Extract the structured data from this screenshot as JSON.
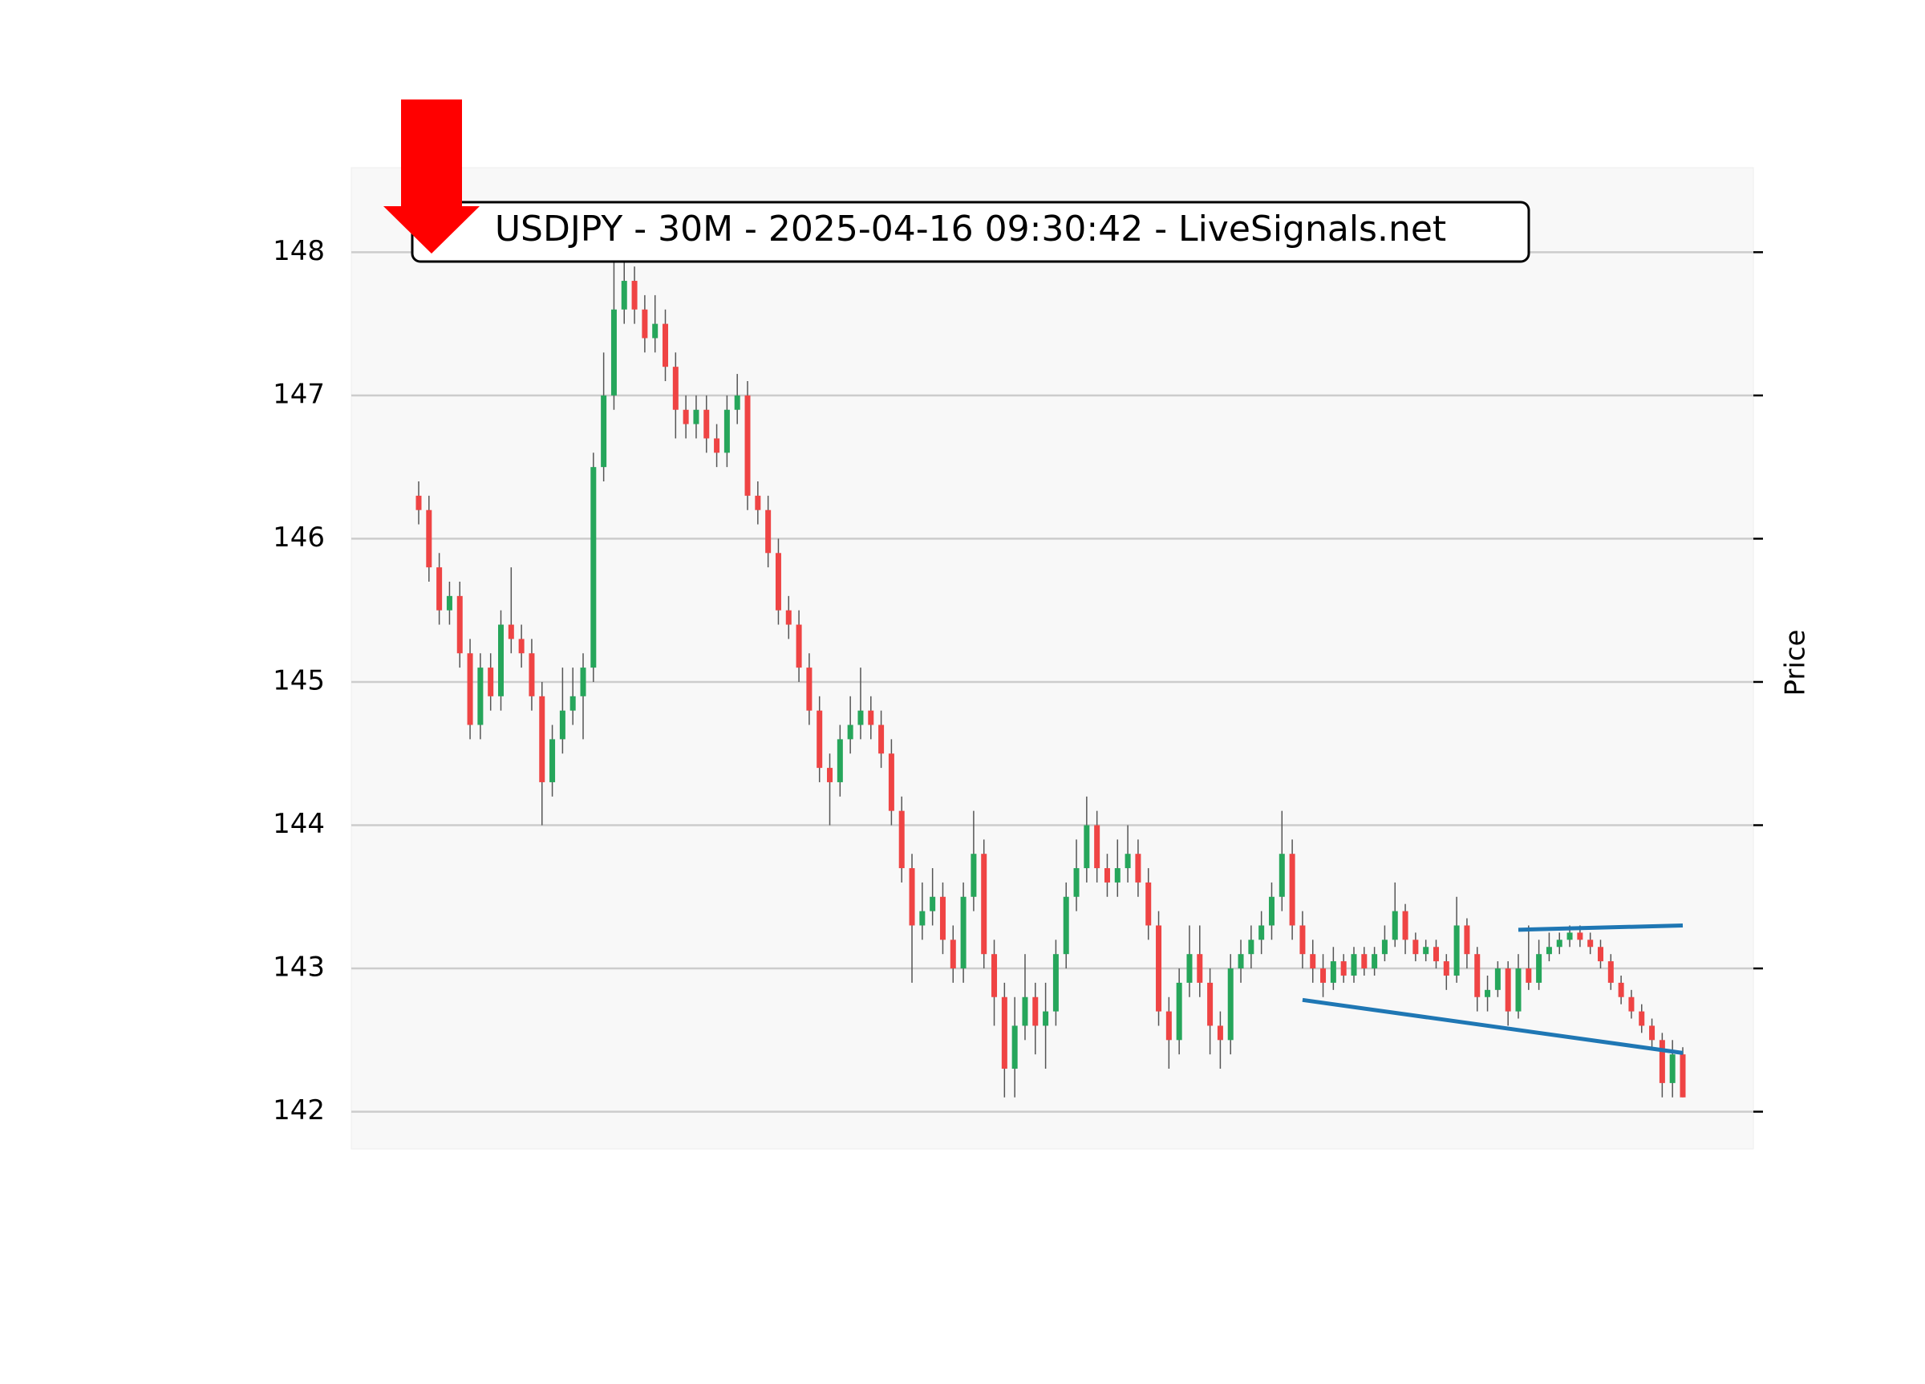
{
  "chart_data": {
    "type": "candlestick",
    "title": "USDJPY - 30M - 2025-04-16 09:30:42 - LiveSignals.net",
    "y_label": "Price",
    "ylim": [
      141.74,
      148.59
    ],
    "yticks": [
      142,
      143,
      144,
      145,
      146,
      147,
      148
    ],
    "grid": true,
    "up_color": "#26a65b",
    "down_color": "#ef4444",
    "open": [
      146.3,
      146.2,
      145.8,
      145.5,
      145.6,
      145.2,
      144.7,
      145.1,
      144.9,
      145.4,
      145.3,
      145.2,
      144.9,
      144.3,
      144.6,
      144.8,
      144.9,
      145.1,
      146.5,
      147.0,
      147.6,
      147.8,
      147.6,
      147.4,
      147.5,
      147.2,
      146.9,
      146.8,
      146.9,
      146.7,
      146.6,
      146.9,
      147.0,
      146.3,
      146.2,
      145.9,
      145.5,
      145.4,
      145.1,
      144.8,
      144.4,
      144.3,
      144.6,
      144.7,
      144.8,
      144.7,
      144.5,
      144.1,
      143.7,
      143.3,
      143.4,
      143.5,
      143.2,
      143.0,
      143.5,
      143.8,
      143.1,
      142.8,
      142.3,
      142.6,
      142.8,
      142.6,
      142.7,
      143.1,
      143.5,
      143.7,
      144.0,
      143.7,
      143.6,
      143.7,
      143.8,
      143.6,
      143.3,
      142.7,
      142.5,
      142.9,
      143.1,
      142.9,
      142.6,
      142.5,
      143.0,
      143.1,
      143.2,
      143.3,
      143.5,
      143.8,
      143.3,
      143.1,
      143.0,
      142.9,
      143.05,
      142.95,
      143.1,
      143.0,
      143.1,
      143.2,
      143.4,
      143.2,
      143.1,
      143.15,
      143.05,
      142.95,
      143.3,
      143.1,
      142.8,
      142.85,
      143.0,
      142.7,
      143.0,
      142.9,
      143.1,
      143.15,
      143.2,
      143.25,
      143.2,
      143.15,
      143.05,
      142.9,
      142.8,
      142.7,
      142.6,
      142.5,
      142.2,
      142.4
    ],
    "high": [
      146.4,
      146.3,
      145.9,
      145.7,
      145.7,
      145.3,
      145.2,
      145.2,
      145.5,
      145.8,
      145.4,
      145.3,
      145.0,
      144.7,
      145.1,
      145.1,
      145.2,
      146.6,
      147.3,
      148.0,
      148.0,
      147.9,
      147.7,
      147.7,
      147.6,
      147.3,
      147.0,
      147.0,
      147.0,
      146.8,
      147.0,
      147.15,
      147.1,
      146.4,
      146.3,
      146.0,
      145.6,
      145.5,
      145.2,
      144.9,
      144.5,
      144.7,
      144.9,
      145.1,
      144.9,
      144.8,
      144.6,
      144.2,
      143.8,
      143.6,
      143.7,
      143.6,
      143.3,
      143.6,
      144.1,
      143.9,
      143.2,
      142.9,
      142.8,
      143.1,
      142.9,
      142.9,
      143.2,
      143.6,
      143.9,
      144.2,
      144.1,
      143.8,
      143.9,
      144.0,
      143.9,
      143.7,
      143.4,
      142.8,
      143.0,
      143.3,
      143.3,
      143.0,
      142.7,
      143.1,
      143.2,
      143.3,
      143.4,
      143.6,
      144.1,
      143.9,
      143.4,
      143.2,
      143.1,
      143.15,
      143.1,
      143.15,
      143.15,
      143.15,
      143.3,
      143.6,
      143.45,
      143.25,
      143.2,
      143.2,
      143.1,
      143.5,
      143.35,
      143.15,
      142.95,
      143.05,
      143.05,
      143.1,
      143.3,
      143.2,
      143.25,
      143.25,
      143.3,
      143.3,
      143.25,
      143.2,
      143.1,
      142.95,
      142.85,
      142.75,
      142.65,
      142.55,
      142.5,
      142.45
    ],
    "low": [
      146.1,
      145.7,
      145.4,
      145.4,
      145.1,
      144.6,
      144.6,
      144.8,
      144.8,
      145.2,
      145.1,
      144.8,
      144.0,
      144.2,
      144.5,
      144.7,
      144.6,
      145.0,
      146.4,
      146.9,
      147.5,
      147.5,
      147.3,
      147.3,
      147.1,
      146.7,
      146.7,
      146.7,
      146.6,
      146.5,
      146.5,
      146.8,
      146.2,
      146.1,
      145.8,
      145.4,
      145.3,
      145.0,
      144.7,
      144.3,
      144.0,
      144.2,
      144.5,
      144.6,
      144.6,
      144.4,
      144.0,
      143.6,
      142.9,
      143.2,
      143.3,
      143.1,
      142.9,
      142.9,
      143.4,
      143.0,
      142.6,
      142.1,
      142.1,
      142.5,
      142.4,
      142.3,
      142.6,
      143.0,
      143.4,
      143.6,
      143.6,
      143.5,
      143.5,
      143.6,
      143.5,
      143.2,
      142.6,
      142.3,
      142.4,
      142.8,
      142.8,
      142.4,
      142.3,
      142.4,
      142.9,
      143.0,
      143.1,
      143.2,
      143.4,
      143.2,
      143.0,
      142.9,
      142.8,
      142.85,
      142.9,
      142.9,
      142.95,
      142.95,
      143.05,
      143.15,
      143.1,
      143.05,
      143.05,
      143.0,
      142.85,
      142.9,
      143.0,
      142.7,
      142.7,
      142.8,
      142.6,
      142.65,
      142.85,
      142.85,
      143.05,
      143.1,
      143.15,
      143.15,
      143.1,
      143.0,
      142.85,
      142.75,
      142.65,
      142.55,
      142.45,
      142.1,
      142.1,
      142.1
    ],
    "close": [
      146.2,
      145.8,
      145.5,
      145.6,
      145.2,
      144.7,
      145.1,
      144.9,
      145.4,
      145.3,
      145.2,
      144.9,
      144.3,
      144.6,
      144.8,
      144.9,
      145.1,
      146.5,
      147.0,
      147.6,
      147.8,
      147.6,
      147.4,
      147.5,
      147.2,
      146.9,
      146.8,
      146.9,
      146.7,
      146.6,
      146.9,
      147.0,
      146.3,
      146.2,
      145.9,
      145.5,
      145.4,
      145.1,
      144.8,
      144.4,
      144.3,
      144.6,
      144.7,
      144.8,
      144.7,
      144.5,
      144.1,
      143.7,
      143.3,
      143.4,
      143.5,
      143.2,
      143.0,
      143.5,
      143.8,
      143.1,
      142.8,
      142.3,
      142.6,
      142.8,
      142.6,
      142.7,
      143.1,
      143.5,
      143.7,
      144.0,
      143.7,
      143.6,
      143.7,
      143.8,
      143.6,
      143.3,
      142.7,
      142.5,
      142.9,
      143.1,
      142.9,
      142.6,
      142.5,
      143.0,
      143.1,
      143.2,
      143.3,
      143.5,
      143.8,
      143.3,
      143.1,
      143.0,
      142.9,
      143.05,
      142.95,
      143.1,
      143.0,
      143.1,
      143.2,
      143.4,
      143.2,
      143.1,
      143.15,
      143.05,
      142.95,
      143.3,
      143.1,
      142.8,
      142.85,
      143.0,
      142.7,
      143.0,
      142.9,
      143.1,
      143.15,
      143.2,
      143.25,
      143.2,
      143.15,
      143.05,
      142.9,
      142.8,
      142.7,
      142.6,
      142.5,
      142.2,
      142.4,
      142.1
    ],
    "trendlines": [
      {
        "color": "#1f77b4",
        "x": [
          86,
          123
        ],
        "y": [
          142.78,
          142.41
        ]
      },
      {
        "color": "#1f77b4",
        "x": [
          107,
          123
        ],
        "y": [
          143.27,
          143.3
        ]
      }
    ]
  }
}
